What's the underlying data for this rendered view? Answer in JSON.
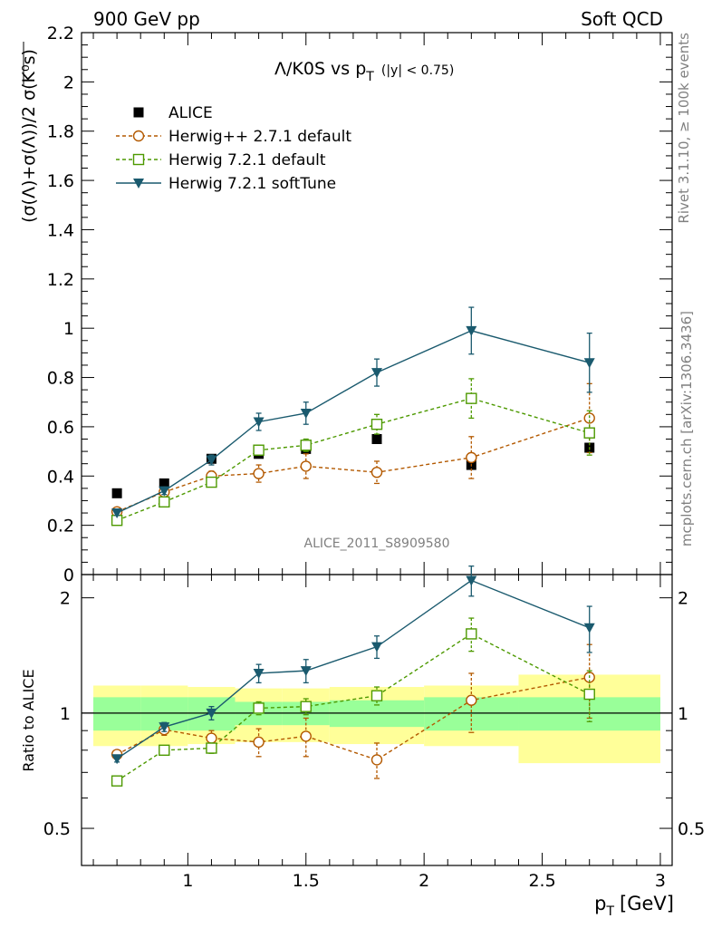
{
  "header": {
    "left": "900 GeV pp",
    "right": "Soft QCD"
  },
  "side_labels": {
    "rivet": "Rivet 3.1.10, ≥ 100k events",
    "mcplots": "mcplots.cern.ch [arXiv:1306.3436]"
  },
  "chart_data": {
    "type": "line",
    "title_main": "Λ/K0S vs p",
    "title_sub": "T",
    "title_cut": "(|y| < 0.75)",
    "analysis": "ALICE_2011_S8909580",
    "xlabel": "p",
    "xlabel_sub": "T",
    "xlabel_unit": "[GeV]",
    "ylabel": "(σ(Λ)+σ(Λ))/2 σ(K⁰s)",
    "ratio_ylabel": "Ratio to ALICE",
    "xlim": [
      0.55,
      3.05
    ],
    "ylim": [
      0,
      2.2
    ],
    "ratio_ylim": [
      0.4,
      2.3
    ],
    "log_ratio": true,
    "x_ticks": [
      "1",
      "1.5",
      "2",
      "2.5",
      "3"
    ],
    "y_ticks": [
      "0",
      "0.2",
      "0.4",
      "0.6",
      "0.8",
      "1",
      "1.2",
      "1.4",
      "1.6",
      "1.8",
      "2",
      "2.2"
    ],
    "ratio_ticks": [
      "0.5",
      "1",
      "2"
    ],
    "x": [
      0.7,
      0.9,
      1.1,
      1.3,
      1.5,
      1.8,
      2.2,
      2.7
    ],
    "bin_edges": [
      0.6,
      0.8,
      1.0,
      1.2,
      1.4,
      1.6,
      2.0,
      2.4,
      3.0
    ],
    "data": {
      "name": "ALICE",
      "values": [
        0.33,
        0.37,
        0.47,
        0.49,
        0.51,
        0.55,
        0.445,
        0.515
      ],
      "band_stat": [
        0.1,
        0.1,
        0.1,
        0.07,
        0.07,
        0.08,
        0.1,
        0.1
      ],
      "band_total": [
        0.18,
        0.18,
        0.17,
        0.16,
        0.16,
        0.17,
        0.18,
        0.26
      ]
    },
    "series": [
      {
        "name": "Herwig++ 2.7.1 default",
        "color": "#b35900",
        "marker": "open-circle",
        "dash": true,
        "values": [
          0.255,
          0.335,
          0.4,
          0.41,
          0.44,
          0.415,
          0.475,
          0.635
        ],
        "errors": [
          0.01,
          0.015,
          0.02,
          0.035,
          0.05,
          0.045,
          0.085,
          0.14
        ]
      },
      {
        "name": "Herwig 7.2.1 default",
        "color": "#4d9900",
        "marker": "open-square",
        "dash": true,
        "values": [
          0.22,
          0.295,
          0.375,
          0.505,
          0.525,
          0.61,
          0.715,
          0.575
        ],
        "errors": [
          0.01,
          0.015,
          0.015,
          0.02,
          0.025,
          0.04,
          0.08,
          0.09
        ]
      },
      {
        "name": "Herwig 7.2.1 softTune",
        "color": "#1a5a6e",
        "marker": "filled-triangle-down",
        "dash": false,
        "values": [
          0.25,
          0.34,
          0.465,
          0.62,
          0.655,
          0.82,
          0.99,
          0.86
        ],
        "errors": [
          0.01,
          0.015,
          0.02,
          0.035,
          0.045,
          0.055,
          0.095,
          0.12
        ]
      }
    ],
    "ratios": [
      {
        "name": "Herwig++ 2.7.1 default",
        "values": [
          0.78,
          0.905,
          0.86,
          0.84,
          0.87,
          0.755,
          1.08,
          1.24
        ],
        "errors": [
          0.015,
          0.03,
          0.04,
          0.07,
          0.1,
          0.08,
          0.19,
          0.27
        ]
      },
      {
        "name": "Herwig 7.2.1 default",
        "values": [
          0.665,
          0.8,
          0.81,
          1.03,
          1.04,
          1.11,
          1.61,
          1.12
        ],
        "errors": [
          0.015,
          0.02,
          0.025,
          0.04,
          0.05,
          0.06,
          0.16,
          0.17
        ]
      },
      {
        "name": "Herwig 7.2.1 softTune",
        "values": [
          0.76,
          0.92,
          1.0,
          1.27,
          1.29,
          1.49,
          2.22,
          1.67
        ],
        "errors": [
          0.015,
          0.025,
          0.04,
          0.07,
          0.09,
          0.1,
          0.2,
          0.23
        ]
      }
    ]
  }
}
